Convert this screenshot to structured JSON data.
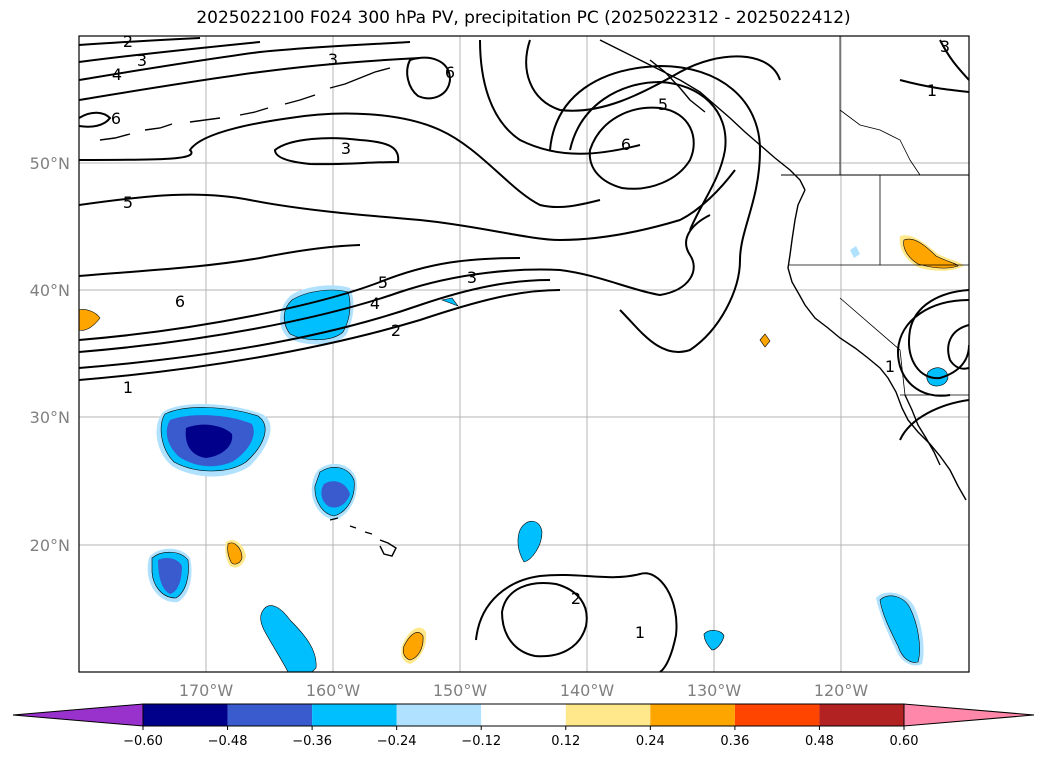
{
  "title": "2025022100 F024 300 hPa PV, precipitation PC (2025022312 - 2025022412)",
  "lat_labels": [
    "50°N",
    "40°N",
    "30°N",
    "20°N"
  ],
  "lon_labels": [
    "170°W",
    "160°W",
    "150°W",
    "140°W",
    "130°W",
    "120°W"
  ],
  "pv_contour_labels": [
    "2",
    "3",
    "4",
    "6",
    "3",
    "6",
    "5",
    "6",
    "3",
    "5",
    "6",
    "5",
    "4",
    "3",
    "2",
    "1",
    "1",
    "3",
    "1",
    "2",
    "1"
  ],
  "colorbar": {
    "ticks": [
      "−0.60",
      "−0.48",
      "−0.36",
      "−0.24",
      "−0.12",
      "0.12",
      "0.24",
      "0.36",
      "0.48",
      "0.60"
    ],
    "colors": [
      "#9932cc",
      "#00008b",
      "#3a5bcd",
      "#00bfff",
      "#b0e2ff",
      "#ffffff",
      "#ffe88c",
      "#ffa500",
      "#ff4500",
      "#b22222",
      "#ff88aa"
    ]
  }
}
